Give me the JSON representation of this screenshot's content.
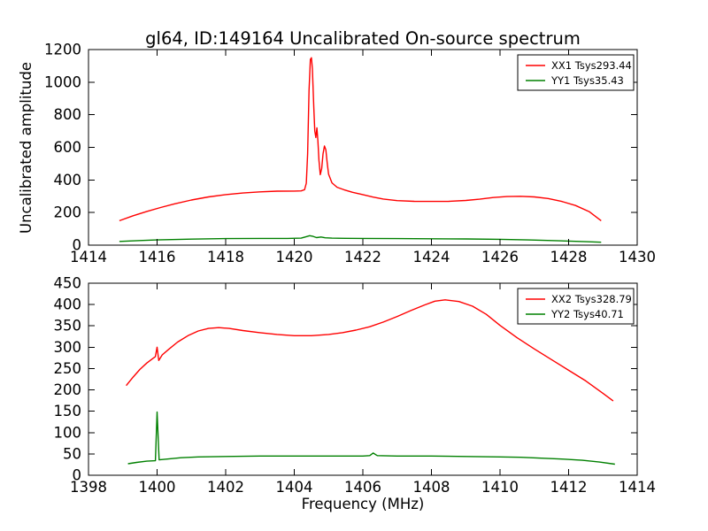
{
  "figure": {
    "title": "gl64, ID:149164 Uncalibrated On-source spectrum",
    "xlabel": "Frequency (MHz)",
    "ylabel": "Uncalibrated amplitude"
  },
  "colors": {
    "background": "#ffffff",
    "frame": "#000000",
    "series_red": "#ff0000",
    "series_green": "#008000"
  },
  "chart_data": [
    {
      "type": "line",
      "title": "",
      "xlabel": "",
      "ylabel": "Uncalibrated amplitude",
      "xlim": [
        1414,
        1430
      ],
      "ylim": [
        0,
        1200
      ],
      "xticks": [
        1414,
        1416,
        1418,
        1420,
        1422,
        1424,
        1426,
        1428,
        1430
      ],
      "yticks": [
        0,
        200,
        400,
        600,
        800,
        1000,
        1200
      ],
      "grid": false,
      "legend_position": "upper right",
      "series": [
        {
          "name": "XX1 Tsys293.44",
          "color": "#ff0000",
          "points": [
            [
              1414.9,
              150
            ],
            [
              1415.3,
              180
            ],
            [
              1415.7,
              207
            ],
            [
              1416.1,
              231
            ],
            [
              1416.5,
              253
            ],
            [
              1417.0,
              277
            ],
            [
              1417.5,
              296
            ],
            [
              1418.0,
              310
            ],
            [
              1418.5,
              320
            ],
            [
              1419.0,
              327
            ],
            [
              1419.5,
              331
            ],
            [
              1420.0,
              332
            ],
            [
              1420.2,
              333
            ],
            [
              1420.3,
              340
            ],
            [
              1420.35,
              380
            ],
            [
              1420.39,
              560
            ],
            [
              1420.43,
              950
            ],
            [
              1420.47,
              1140
            ],
            [
              1420.5,
              1150
            ],
            [
              1420.53,
              1080
            ],
            [
              1420.57,
              840
            ],
            [
              1420.6,
              700
            ],
            [
              1420.63,
              660
            ],
            [
              1420.66,
              720
            ],
            [
              1420.69,
              640
            ],
            [
              1420.72,
              520
            ],
            [
              1420.76,
              432
            ],
            [
              1420.8,
              470
            ],
            [
              1420.84,
              560
            ],
            [
              1420.88,
              608
            ],
            [
              1420.92,
              585
            ],
            [
              1420.96,
              505
            ],
            [
              1421.0,
              435
            ],
            [
              1421.1,
              382
            ],
            [
              1421.25,
              355
            ],
            [
              1421.45,
              340
            ],
            [
              1421.7,
              324
            ],
            [
              1422.0,
              310
            ],
            [
              1422.3,
              295
            ],
            [
              1422.6,
              283
            ],
            [
              1423.0,
              273
            ],
            [
              1423.5,
              269
            ],
            [
              1424.0,
              268
            ],
            [
              1424.5,
              269
            ],
            [
              1425.0,
              274
            ],
            [
              1425.4,
              282
            ],
            [
              1425.8,
              292
            ],
            [
              1426.2,
              298
            ],
            [
              1426.6,
              300
            ],
            [
              1427.0,
              296
            ],
            [
              1427.4,
              286
            ],
            [
              1427.8,
              268
            ],
            [
              1428.2,
              243
            ],
            [
              1428.6,
              206
            ],
            [
              1428.95,
              150
            ]
          ]
        },
        {
          "name": "YY1 Tsys35.43",
          "color": "#008000",
          "points": [
            [
              1414.9,
              23
            ],
            [
              1415.5,
              28
            ],
            [
              1416.0,
              32
            ],
            [
              1417.0,
              37
            ],
            [
              1418.0,
              40
            ],
            [
              1419.0,
              41
            ],
            [
              1419.8,
              41
            ],
            [
              1420.2,
              43
            ],
            [
              1420.35,
              52
            ],
            [
              1420.45,
              58
            ],
            [
              1420.55,
              54
            ],
            [
              1420.65,
              46
            ],
            [
              1420.78,
              50
            ],
            [
              1420.9,
              45
            ],
            [
              1421.1,
              43
            ],
            [
              1421.5,
              42
            ],
            [
              1422.0,
              41
            ],
            [
              1423.0,
              40
            ],
            [
              1424.0,
              39
            ],
            [
              1425.0,
              38
            ],
            [
              1426.0,
              36
            ],
            [
              1426.8,
              32
            ],
            [
              1427.5,
              28
            ],
            [
              1428.0,
              25
            ],
            [
              1428.5,
              21
            ],
            [
              1428.95,
              18
            ]
          ]
        }
      ]
    },
    {
      "type": "line",
      "title": "",
      "xlabel": "Frequency (MHz)",
      "ylabel": "",
      "xlim": [
        1398,
        1414
      ],
      "ylim": [
        0,
        450
      ],
      "xticks": [
        1398,
        1400,
        1402,
        1404,
        1406,
        1408,
        1410,
        1412,
        1414
      ],
      "yticks": [
        0,
        50,
        100,
        150,
        200,
        250,
        300,
        350,
        400,
        450
      ],
      "grid": false,
      "legend_position": "upper right",
      "series": [
        {
          "name": "XX2 Tsys328.79",
          "color": "#ff0000",
          "points": [
            [
              1399.1,
              210
            ],
            [
              1399.3,
              230
            ],
            [
              1399.5,
              248
            ],
            [
              1399.7,
              263
            ],
            [
              1399.85,
              272
            ],
            [
              1399.95,
              278
            ],
            [
              1400.0,
              300
            ],
            [
              1400.05,
              269
            ],
            [
              1400.15,
              282
            ],
            [
              1400.35,
              296
            ],
            [
              1400.6,
              312
            ],
            [
              1400.9,
              327
            ],
            [
              1401.2,
              338
            ],
            [
              1401.5,
              344
            ],
            [
              1401.8,
              346
            ],
            [
              1402.1,
              344
            ],
            [
              1402.5,
              339
            ],
            [
              1403.0,
              334
            ],
            [
              1403.5,
              330
            ],
            [
              1404.0,
              327
            ],
            [
              1404.5,
              327
            ],
            [
              1405.0,
              330
            ],
            [
              1405.4,
              334
            ],
            [
              1405.8,
              340
            ],
            [
              1406.2,
              348
            ],
            [
              1406.6,
              359
            ],
            [
              1407.0,
              372
            ],
            [
              1407.4,
              386
            ],
            [
              1407.8,
              399
            ],
            [
              1408.1,
              408
            ],
            [
              1408.4,
              411
            ],
            [
              1408.8,
              407
            ],
            [
              1409.2,
              396
            ],
            [
              1409.6,
              377
            ],
            [
              1410.0,
              351
            ],
            [
              1410.5,
              322
            ],
            [
              1411.0,
              296
            ],
            [
              1411.5,
              271
            ],
            [
              1412.0,
              246
            ],
            [
              1412.5,
              221
            ],
            [
              1413.0,
              192
            ],
            [
              1413.3,
              174
            ]
          ]
        },
        {
          "name": "YY2 Tsys40.71",
          "color": "#008000",
          "points": [
            [
              1399.15,
              27
            ],
            [
              1399.4,
              30
            ],
            [
              1399.7,
              33
            ],
            [
              1399.95,
              34
            ],
            [
              1400.0,
              148
            ],
            [
              1400.06,
              36
            ],
            [
              1400.3,
              38
            ],
            [
              1400.7,
              41
            ],
            [
              1401.2,
              43
            ],
            [
              1402.0,
              44
            ],
            [
              1403.0,
              45
            ],
            [
              1404.0,
              45
            ],
            [
              1405.0,
              45
            ],
            [
              1406.0,
              45
            ],
            [
              1406.2,
              46
            ],
            [
              1406.3,
              52
            ],
            [
              1406.42,
              46
            ],
            [
              1407.0,
              45
            ],
            [
              1408.0,
              45
            ],
            [
              1409.0,
              44
            ],
            [
              1410.0,
              43
            ],
            [
              1410.6,
              42
            ],
            [
              1411.2,
              40
            ],
            [
              1411.8,
              38
            ],
            [
              1412.4,
              35
            ],
            [
              1412.9,
              31
            ],
            [
              1413.35,
              26
            ]
          ]
        }
      ]
    }
  ]
}
